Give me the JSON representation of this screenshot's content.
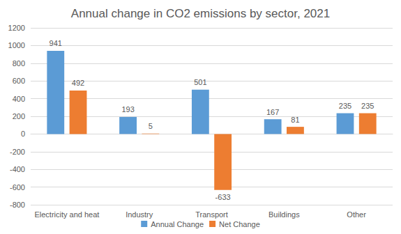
{
  "chart_data": {
    "type": "bar",
    "title": "Annual change in CO2 emissions by sector, 2021",
    "categories": [
      "Electricity and heat",
      "Industry",
      "Transport",
      "Buildings",
      "Other"
    ],
    "series": [
      {
        "name": "Annual Change",
        "color": "#5b9bd5",
        "values": [
          941,
          193,
          501,
          167,
          235
        ]
      },
      {
        "name": "Net Change",
        "color": "#ed7d31",
        "values": [
          492,
          5,
          -633,
          81,
          235
        ]
      }
    ],
    "ylim": [
      -800,
      1200
    ],
    "yticks": [
      -800,
      -600,
      -400,
      -200,
      0,
      200,
      400,
      600,
      800,
      1000,
      1200
    ],
    "grid": true,
    "legend": "bottom",
    "data_labels": true
  }
}
